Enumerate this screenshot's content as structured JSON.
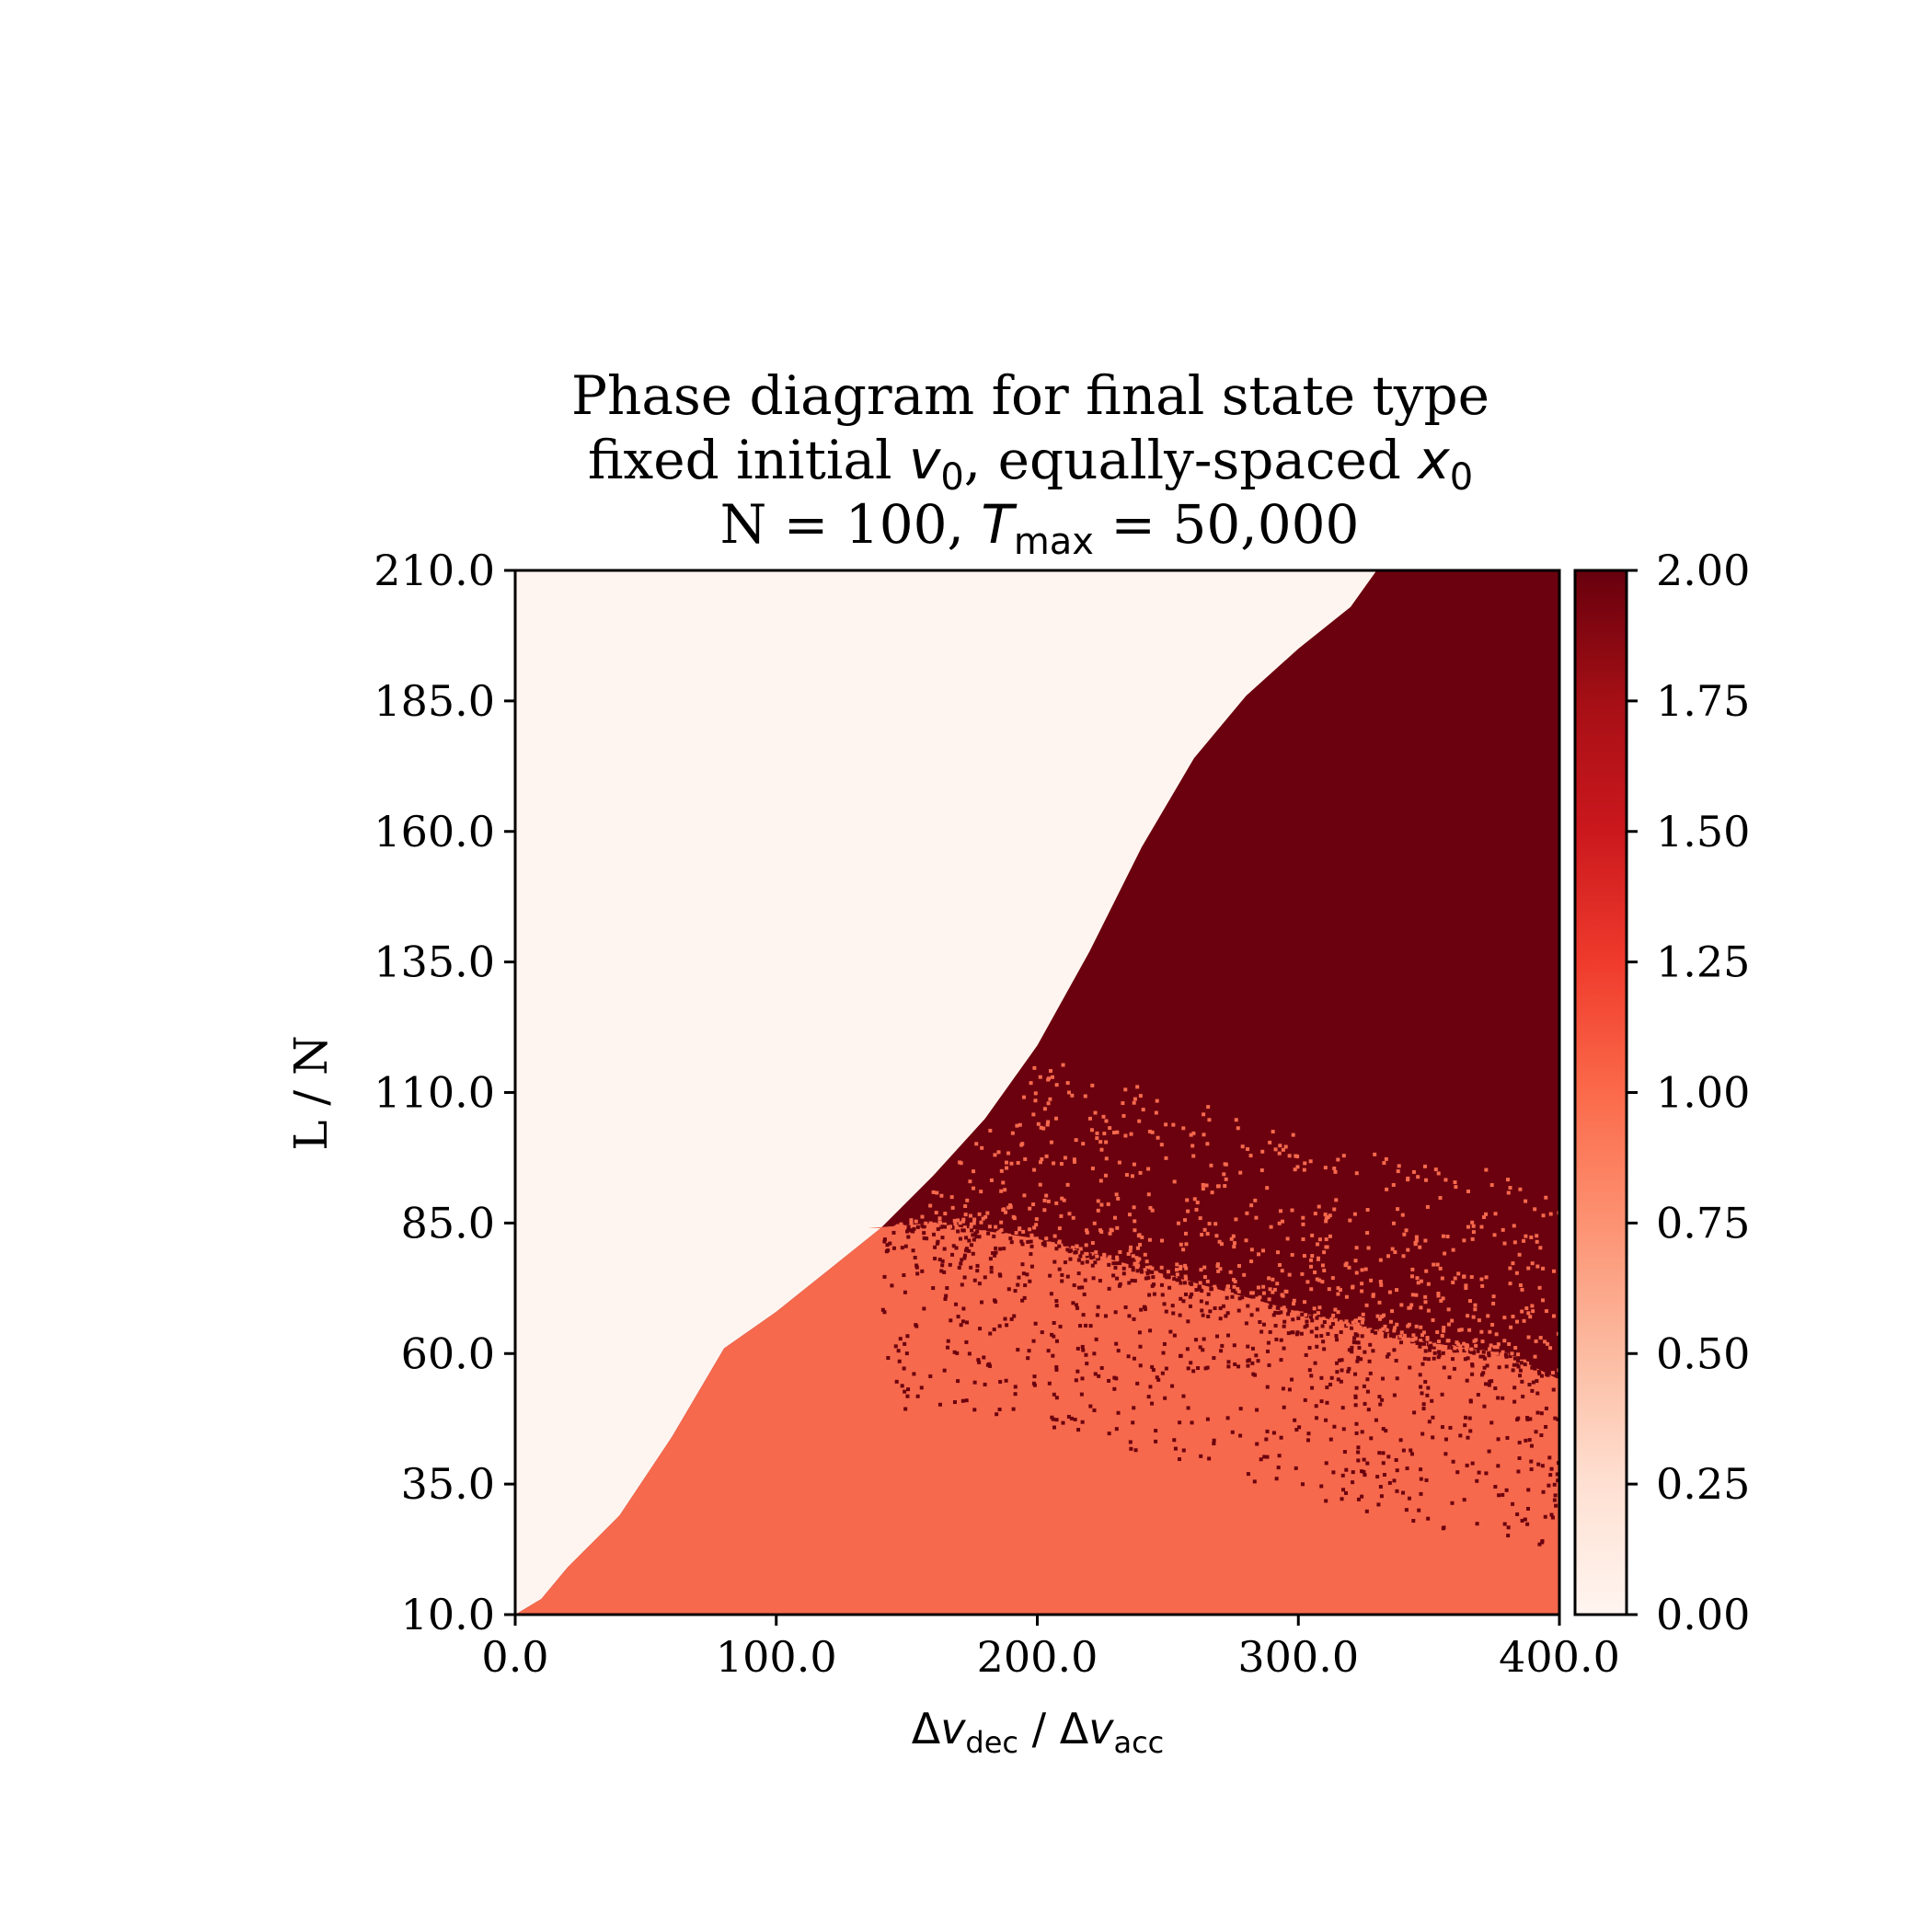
{
  "chart_data": {
    "type": "heatmap",
    "title": {
      "line1": "Phase diagram for final state type",
      "line2": {
        "prefix": "fixed initial ",
        "var1": "v",
        "sub1": "0",
        "middle": ", equally-spaced ",
        "var2": "x",
        "sub2": "0"
      },
      "line3": {
        "prefix": "N = 100, ",
        "var": "T",
        "sub": "max",
        "suffix": " = 50,000"
      }
    },
    "xlabel": {
      "d1": "Δ",
      "v1": "v",
      "s1": "dec",
      "sep": " / ",
      "d2": "Δ",
      "v2": "v",
      "s2": "acc"
    },
    "ylabel": "L / N",
    "xlim": [
      0,
      400
    ],
    "ylim": [
      10,
      210
    ],
    "x_ticks": [
      0,
      100,
      200,
      300,
      400
    ],
    "x_tick_labels": [
      "0.0",
      "100.0",
      "200.0",
      "300.0",
      "400.0"
    ],
    "y_ticks": [
      10,
      35,
      60,
      85,
      110,
      135,
      160,
      185,
      210
    ],
    "y_tick_labels": [
      "10.0",
      "35.0",
      "60.0",
      "85.0",
      "110.0",
      "135.0",
      "160.0",
      "185.0",
      "210.0"
    ],
    "colorbar": {
      "colormap": "Reds",
      "range": [
        0,
        2
      ],
      "ticks": [
        0,
        0.25,
        0.5,
        0.75,
        1,
        1.25,
        1.5,
        1.75,
        2
      ],
      "tick_labels": [
        "0.00",
        "0.25",
        "0.50",
        "0.75",
        "1.00",
        "1.25",
        "1.50",
        "1.75",
        "2.00"
      ]
    },
    "regions": [
      {
        "value": 0,
        "description": "upper-left region above boundary",
        "color": "#fff5f0"
      },
      {
        "value": 1,
        "description": "lower region, small L/N",
        "color": "#f6694d"
      },
      {
        "value": 2,
        "description": "upper-right region, large Δv ratio",
        "color": "#6b010e"
      }
    ],
    "boundary_0": [
      [
        0,
        10
      ],
      [
        10,
        13
      ],
      [
        20,
        19
      ],
      [
        40,
        29
      ],
      [
        60,
        44
      ],
      [
        80,
        61
      ],
      [
        100,
        68
      ],
      [
        120,
        76
      ],
      [
        140,
        84
      ],
      [
        160,
        94
      ],
      [
        180,
        105
      ],
      [
        200,
        119
      ],
      [
        220,
        137
      ],
      [
        240,
        157
      ],
      [
        260,
        174
      ],
      [
        280,
        186
      ],
      [
        300,
        195
      ],
      [
        320,
        203
      ],
      [
        330,
        210
      ]
    ],
    "boundary_1_2": [
      [
        135,
        84
      ],
      [
        160,
        85
      ],
      [
        200,
        82
      ],
      [
        250,
        75
      ],
      [
        300,
        68
      ],
      [
        350,
        62
      ],
      [
        380,
        60
      ],
      [
        400,
        55
      ]
    ]
  }
}
